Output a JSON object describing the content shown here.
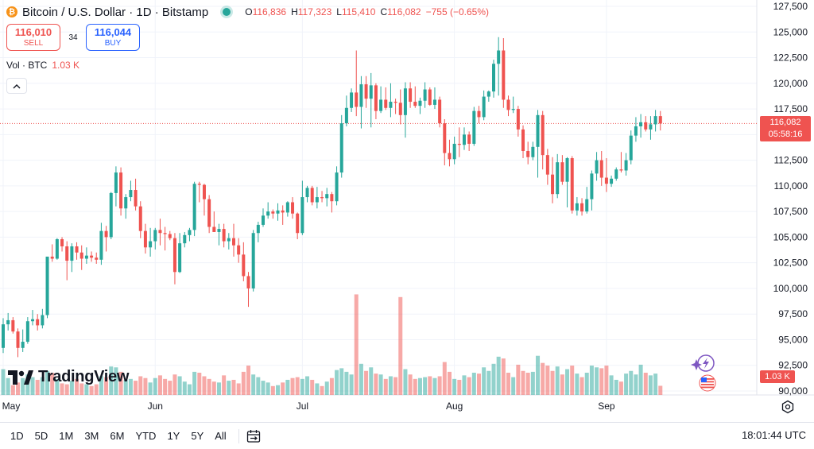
{
  "header": {
    "symbol_icon": "bitcoin-icon",
    "title": "Bitcoin / U.S. Dollar · 1D · Bitstamp",
    "ohlc": {
      "o_label": "O",
      "o_value": "116,836",
      "h_label": "H",
      "h_value": "117,323",
      "l_label": "L",
      "l_value": "115,410",
      "c_label": "C",
      "c_value": "116,082",
      "change": "−755 (−0.65%)"
    }
  },
  "trade": {
    "sell_price": "116,010",
    "sell_label": "SELL",
    "spread": "34",
    "buy_price": "116,044",
    "buy_label": "BUY"
  },
  "volume_legend": {
    "label": "Vol · BTC",
    "value": "1.03 K"
  },
  "price_tag": {
    "price": "116,082",
    "countdown": "05:58:16"
  },
  "volume_tag": "1.03 K",
  "logo_text": "TradingView",
  "timeframes": [
    "1D",
    "5D",
    "1M",
    "3M",
    "6M",
    "YTD",
    "1Y",
    "5Y",
    "All"
  ],
  "clock": "18:01:44 UTC",
  "colors": {
    "up": "#26a69a",
    "down": "#ef5350",
    "grid": "#f0f3fa",
    "text": "#131722"
  },
  "chart_data": {
    "type": "candlestick",
    "y_ticks": [
      90000,
      92500,
      95000,
      97500,
      100000,
      102500,
      105000,
      107500,
      110000,
      112500,
      115000,
      117500,
      120000,
      122500,
      125000,
      127500
    ],
    "y_tick_labels": [
      "90,000",
      "92,500",
      "95,000",
      "97,500",
      "100,000",
      "102,500",
      "105,000",
      "107,500",
      "110,000",
      "112,500",
      "115,000",
      "117,500",
      "120,000",
      "122,500",
      "125,000",
      "127,500"
    ],
    "ylim": [
      89000,
      128000
    ],
    "x_ticks": [
      {
        "label": "May",
        "index": 0
      },
      {
        "label": "Jun",
        "index": 31
      },
      {
        "label": "Jul",
        "index": 61
      },
      {
        "label": "Aug",
        "index": 92
      },
      {
        "label": "Sep",
        "index": 123
      }
    ],
    "last_price": 116082,
    "candles": [
      {
        "o": 94200,
        "h": 97100,
        "l": 93700,
        "c": 96500,
        "v": 2.9
      },
      {
        "o": 96500,
        "h": 97600,
        "l": 95900,
        "c": 96900,
        "v": 1.9
      },
      {
        "o": 96900,
        "h": 97200,
        "l": 95600,
        "c": 95800,
        "v": 1.1
      },
      {
        "o": 95800,
        "h": 96100,
        "l": 93300,
        "c": 94200,
        "v": 1.4
      },
      {
        "o": 94200,
        "h": 96000,
        "l": 93800,
        "c": 94800,
        "v": 1.9
      },
      {
        "o": 94800,
        "h": 97200,
        "l": 94600,
        "c": 96800,
        "v": 2.3
      },
      {
        "o": 96800,
        "h": 97900,
        "l": 96400,
        "c": 97000,
        "v": 2.0
      },
      {
        "o": 97000,
        "h": 97500,
        "l": 95900,
        "c": 96400,
        "v": 1.7
      },
      {
        "o": 96400,
        "h": 98000,
        "l": 96100,
        "c": 97400,
        "v": 2.0
      },
      {
        "o": 97400,
        "h": 103000,
        "l": 97100,
        "c": 103100,
        "v": 2.7
      },
      {
        "o": 103100,
        "h": 104300,
        "l": 102600,
        "c": 102900,
        "v": 2.5
      },
      {
        "o": 102900,
        "h": 104900,
        "l": 102800,
        "c": 104800,
        "v": 1.8
      },
      {
        "o": 104800,
        "h": 105000,
        "l": 103600,
        "c": 104100,
        "v": 1.3
      },
      {
        "o": 104100,
        "h": 104600,
        "l": 100800,
        "c": 102700,
        "v": 1.2
      },
      {
        "o": 102700,
        "h": 104400,
        "l": 101600,
        "c": 104100,
        "v": 1.6
      },
      {
        "o": 104100,
        "h": 104500,
        "l": 102800,
        "c": 103500,
        "v": 1.8
      },
      {
        "o": 103500,
        "h": 104200,
        "l": 101800,
        "c": 102900,
        "v": 1.3
      },
      {
        "o": 102900,
        "h": 104000,
        "l": 102400,
        "c": 103200,
        "v": 1.2
      },
      {
        "o": 103200,
        "h": 103600,
        "l": 102600,
        "c": 103000,
        "v": 1.0
      },
      {
        "o": 103000,
        "h": 103500,
        "l": 102400,
        "c": 102800,
        "v": 1.2
      },
      {
        "o": 102800,
        "h": 106400,
        "l": 102300,
        "c": 105600,
        "v": 2.1
      },
      {
        "o": 105600,
        "h": 106100,
        "l": 103600,
        "c": 105000,
        "v": 2.0
      },
      {
        "o": 105000,
        "h": 109400,
        "l": 104800,
        "c": 109300,
        "v": 3.2
      },
      {
        "o": 109300,
        "h": 111900,
        "l": 108000,
        "c": 111300,
        "v": 3.1
      },
      {
        "o": 111300,
        "h": 111800,
        "l": 107100,
        "c": 107800,
        "v": 2.6
      },
      {
        "o": 107800,
        "h": 109200,
        "l": 106800,
        "c": 108900,
        "v": 1.7
      },
      {
        "o": 108900,
        "h": 110500,
        "l": 108500,
        "c": 109600,
        "v": 1.8
      },
      {
        "o": 109600,
        "h": 110700,
        "l": 107600,
        "c": 108000,
        "v": 1.6
      },
      {
        "o": 108000,
        "h": 108500,
        "l": 104900,
        "c": 105600,
        "v": 2.1
      },
      {
        "o": 105600,
        "h": 106300,
        "l": 103400,
        "c": 104000,
        "v": 1.9
      },
      {
        "o": 104000,
        "h": 105900,
        "l": 103100,
        "c": 104600,
        "v": 1.4
      },
      {
        "o": 104600,
        "h": 105900,
        "l": 103800,
        "c": 105700,
        "v": 1.9
      },
      {
        "o": 105700,
        "h": 106800,
        "l": 104200,
        "c": 105400,
        "v": 2.2
      },
      {
        "o": 105400,
        "h": 106000,
        "l": 103700,
        "c": 105300,
        "v": 1.8
      },
      {
        "o": 105300,
        "h": 105600,
        "l": 104700,
        "c": 104900,
        "v": 1.6
      },
      {
        "o": 104900,
        "h": 105400,
        "l": 100400,
        "c": 101600,
        "v": 2.3
      },
      {
        "o": 101600,
        "h": 105400,
        "l": 101500,
        "c": 104400,
        "v": 2.1
      },
      {
        "o": 104400,
        "h": 105500,
        "l": 104000,
        "c": 105200,
        "v": 1.5
      },
      {
        "o": 105200,
        "h": 105900,
        "l": 104600,
        "c": 105700,
        "v": 1.2
      },
      {
        "o": 105700,
        "h": 110400,
        "l": 105100,
        "c": 110200,
        "v": 2.6
      },
      {
        "o": 110200,
        "h": 110400,
        "l": 108400,
        "c": 110100,
        "v": 2.5
      },
      {
        "o": 110100,
        "h": 110200,
        "l": 107100,
        "c": 108700,
        "v": 2.1
      },
      {
        "o": 108700,
        "h": 109100,
        "l": 105400,
        "c": 106000,
        "v": 1.8
      },
      {
        "o": 106000,
        "h": 107500,
        "l": 105500,
        "c": 105500,
        "v": 1.5
      },
      {
        "o": 105500,
        "h": 106300,
        "l": 104200,
        "c": 105800,
        "v": 1.4
      },
      {
        "o": 105800,
        "h": 106300,
        "l": 104000,
        "c": 104600,
        "v": 2.2
      },
      {
        "o": 104600,
        "h": 105400,
        "l": 103800,
        "c": 104900,
        "v": 1.6
      },
      {
        "o": 104900,
        "h": 106300,
        "l": 103100,
        "c": 104200,
        "v": 1.7
      },
      {
        "o": 104200,
        "h": 104900,
        "l": 102500,
        "c": 103300,
        "v": 1.3
      },
      {
        "o": 103300,
        "h": 104500,
        "l": 100700,
        "c": 101200,
        "v": 2.6
      },
      {
        "o": 101200,
        "h": 101600,
        "l": 98200,
        "c": 100000,
        "v": 3.3
      },
      {
        "o": 100000,
        "h": 105700,
        "l": 99700,
        "c": 105400,
        "v": 2.3
      },
      {
        "o": 105400,
        "h": 106500,
        "l": 104500,
        "c": 106200,
        "v": 2.0
      },
      {
        "o": 106200,
        "h": 107800,
        "l": 106000,
        "c": 107100,
        "v": 1.6
      },
      {
        "o": 107100,
        "h": 108400,
        "l": 106800,
        "c": 107500,
        "v": 1.4
      },
      {
        "o": 107500,
        "h": 107700,
        "l": 106800,
        "c": 107300,
        "v": 1.0
      },
      {
        "o": 107300,
        "h": 108300,
        "l": 106600,
        "c": 107600,
        "v": 1.1
      },
      {
        "o": 107600,
        "h": 108100,
        "l": 106200,
        "c": 107400,
        "v": 1.4
      },
      {
        "o": 107400,
        "h": 108500,
        "l": 107000,
        "c": 108400,
        "v": 1.7
      },
      {
        "o": 108400,
        "h": 108900,
        "l": 106800,
        "c": 107300,
        "v": 1.9
      },
      {
        "o": 107300,
        "h": 107400,
        "l": 104800,
        "c": 105400,
        "v": 2.0
      },
      {
        "o": 105400,
        "h": 110500,
        "l": 105200,
        "c": 108900,
        "v": 1.8
      },
      {
        "o": 108900,
        "h": 110000,
        "l": 108400,
        "c": 109800,
        "v": 2.1
      },
      {
        "o": 109800,
        "h": 110000,
        "l": 108100,
        "c": 108400,
        "v": 1.7
      },
      {
        "o": 108400,
        "h": 109900,
        "l": 107800,
        "c": 108900,
        "v": 1.3
      },
      {
        "o": 108900,
        "h": 109500,
        "l": 108400,
        "c": 108800,
        "v": 1.0
      },
      {
        "o": 108800,
        "h": 109800,
        "l": 108000,
        "c": 109200,
        "v": 1.5
      },
      {
        "o": 109200,
        "h": 109400,
        "l": 107400,
        "c": 108500,
        "v": 1.9
      },
      {
        "o": 108500,
        "h": 111900,
        "l": 108100,
        "c": 111300,
        "v": 2.8
      },
      {
        "o": 111300,
        "h": 116900,
        "l": 110800,
        "c": 116100,
        "v": 3.0
      },
      {
        "o": 116100,
        "h": 118800,
        "l": 115800,
        "c": 117600,
        "v": 2.6
      },
      {
        "o": 117600,
        "h": 119500,
        "l": 117200,
        "c": 119100,
        "v": 2.3
      },
      {
        "o": 119100,
        "h": 123200,
        "l": 116800,
        "c": 117700,
        "v": 11.3
      },
      {
        "o": 117700,
        "h": 120700,
        "l": 115600,
        "c": 119900,
        "v": 3.5
      },
      {
        "o": 119900,
        "h": 120700,
        "l": 117600,
        "c": 118500,
        "v": 2.7
      },
      {
        "o": 118500,
        "h": 121000,
        "l": 115700,
        "c": 119800,
        "v": 3.1
      },
      {
        "o": 119800,
        "h": 120000,
        "l": 116500,
        "c": 117300,
        "v": 2.4
      },
      {
        "o": 117300,
        "h": 119700,
        "l": 117100,
        "c": 118400,
        "v": 2.3
      },
      {
        "o": 118400,
        "h": 119600,
        "l": 117400,
        "c": 117600,
        "v": 1.8
      },
      {
        "o": 117600,
        "h": 120000,
        "l": 116700,
        "c": 118200,
        "v": 2.1
      },
      {
        "o": 118200,
        "h": 118500,
        "l": 117000,
        "c": 118100,
        "v": 2.0
      },
      {
        "o": 118100,
        "h": 119400,
        "l": 116000,
        "c": 116900,
        "v": 11.0
      },
      {
        "o": 116900,
        "h": 120100,
        "l": 114700,
        "c": 119500,
        "v": 2.9
      },
      {
        "o": 119500,
        "h": 120100,
        "l": 117600,
        "c": 118200,
        "v": 2.3
      },
      {
        "o": 118200,
        "h": 119700,
        "l": 117600,
        "c": 117800,
        "v": 1.8
      },
      {
        "o": 117800,
        "h": 118600,
        "l": 117000,
        "c": 118300,
        "v": 1.9
      },
      {
        "o": 118300,
        "h": 120100,
        "l": 117600,
        "c": 119400,
        "v": 2.0
      },
      {
        "o": 119400,
        "h": 119600,
        "l": 117800,
        "c": 117900,
        "v": 2.1
      },
      {
        "o": 117900,
        "h": 119600,
        "l": 117500,
        "c": 118400,
        "v": 1.9
      },
      {
        "o": 118400,
        "h": 118700,
        "l": 115700,
        "c": 116100,
        "v": 2.1
      },
      {
        "o": 116100,
        "h": 116500,
        "l": 112000,
        "c": 113200,
        "v": 3.7
      },
      {
        "o": 113200,
        "h": 114500,
        "l": 111900,
        "c": 112600,
        "v": 2.6
      },
      {
        "o": 112600,
        "h": 114800,
        "l": 112100,
        "c": 114100,
        "v": 1.8
      },
      {
        "o": 114100,
        "h": 115700,
        "l": 112800,
        "c": 114000,
        "v": 1.7
      },
      {
        "o": 114000,
        "h": 115700,
        "l": 113500,
        "c": 115000,
        "v": 2.2
      },
      {
        "o": 115000,
        "h": 115300,
        "l": 113400,
        "c": 114100,
        "v": 2.0
      },
      {
        "o": 114100,
        "h": 117700,
        "l": 113900,
        "c": 117300,
        "v": 2.5
      },
      {
        "o": 117300,
        "h": 117800,
        "l": 116100,
        "c": 116700,
        "v": 2.4
      },
      {
        "o": 116700,
        "h": 119300,
        "l": 116400,
        "c": 118700,
        "v": 3.1
      },
      {
        "o": 118700,
        "h": 119300,
        "l": 118200,
        "c": 119200,
        "v": 2.7
      },
      {
        "o": 119200,
        "h": 122300,
        "l": 118600,
        "c": 121900,
        "v": 3.5
      },
      {
        "o": 121900,
        "h": 124500,
        "l": 118800,
        "c": 123200,
        "v": 4.3
      },
      {
        "o": 123200,
        "h": 124400,
        "l": 117600,
        "c": 118400,
        "v": 4.1
      },
      {
        "o": 118400,
        "h": 118800,
        "l": 116800,
        "c": 117400,
        "v": 2.5
      },
      {
        "o": 117400,
        "h": 118700,
        "l": 117100,
        "c": 117500,
        "v": 2.0
      },
      {
        "o": 117500,
        "h": 117800,
        "l": 114800,
        "c": 115500,
        "v": 3.4
      },
      {
        "o": 115500,
        "h": 115900,
        "l": 112700,
        "c": 113400,
        "v": 2.7
      },
      {
        "o": 113400,
        "h": 114300,
        "l": 112100,
        "c": 112800,
        "v": 2.5
      },
      {
        "o": 112800,
        "h": 114300,
        "l": 112500,
        "c": 113800,
        "v": 2.6
      },
      {
        "o": 113800,
        "h": 117400,
        "l": 110800,
        "c": 116900,
        "v": 4.4
      },
      {
        "o": 116900,
        "h": 117300,
        "l": 111600,
        "c": 113000,
        "v": 3.6
      },
      {
        "o": 113000,
        "h": 113600,
        "l": 110100,
        "c": 111100,
        "v": 3.3
      },
      {
        "o": 111100,
        "h": 112800,
        "l": 108300,
        "c": 109200,
        "v": 2.7
      },
      {
        "o": 109200,
        "h": 113100,
        "l": 108800,
        "c": 112300,
        "v": 3.2
      },
      {
        "o": 112300,
        "h": 113000,
        "l": 110100,
        "c": 110400,
        "v": 2.3
      },
      {
        "o": 110400,
        "h": 112800,
        "l": 107900,
        "c": 112700,
        "v": 2.9
      },
      {
        "o": 112700,
        "h": 112900,
        "l": 107300,
        "c": 107600,
        "v": 3.3
      },
      {
        "o": 107600,
        "h": 108900,
        "l": 107100,
        "c": 108300,
        "v": 2.4
      },
      {
        "o": 108300,
        "h": 108800,
        "l": 107100,
        "c": 107500,
        "v": 2.0
      },
      {
        "o": 107500,
        "h": 109900,
        "l": 107300,
        "c": 108700,
        "v": 2.5
      },
      {
        "o": 108700,
        "h": 111500,
        "l": 107600,
        "c": 111200,
        "v": 3.3
      },
      {
        "o": 111200,
        "h": 113300,
        "l": 110500,
        "c": 112500,
        "v": 3.1
      },
      {
        "o": 112500,
        "h": 113400,
        "l": 110000,
        "c": 110800,
        "v": 3.0
      },
      {
        "o": 110800,
        "h": 112700,
        "l": 109400,
        "c": 110200,
        "v": 3.3
      },
      {
        "o": 110200,
        "h": 111000,
        "l": 109900,
        "c": 110700,
        "v": 2.2
      },
      {
        "o": 110700,
        "h": 111800,
        "l": 110500,
        "c": 111600,
        "v": 1.7
      },
      {
        "o": 111600,
        "h": 113300,
        "l": 111300,
        "c": 111500,
        "v": 1.5
      },
      {
        "o": 111500,
        "h": 113200,
        "l": 111000,
        "c": 112500,
        "v": 2.4
      },
      {
        "o": 112500,
        "h": 115400,
        "l": 112100,
        "c": 114900,
        "v": 2.7
      },
      {
        "o": 114900,
        "h": 116700,
        "l": 114300,
        "c": 115800,
        "v": 2.3
      },
      {
        "o": 115800,
        "h": 117000,
        "l": 114700,
        "c": 116200,
        "v": 3.4
      },
      {
        "o": 116200,
        "h": 116800,
        "l": 115300,
        "c": 115500,
        "v": 2.5
      },
      {
        "o": 115500,
        "h": 116800,
        "l": 114500,
        "c": 116000,
        "v": 2.2
      },
      {
        "o": 116000,
        "h": 117400,
        "l": 115300,
        "c": 116800,
        "v": 2.4
      },
      {
        "o": 116800,
        "h": 117300,
        "l": 115400,
        "c": 116082,
        "v": 1.03
      }
    ]
  }
}
